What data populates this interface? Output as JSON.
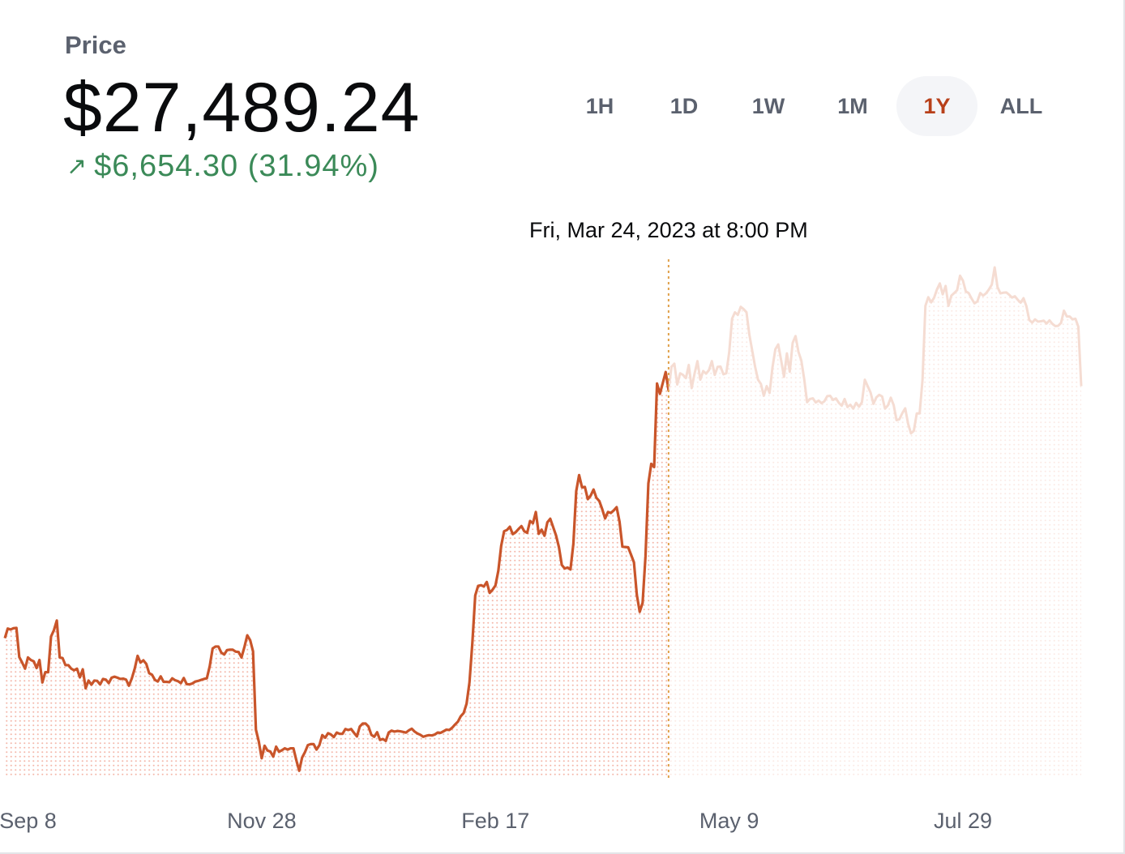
{
  "header": {
    "price_label": "Price",
    "price_value": "$27,489.24",
    "change_icon": "arrow-up-right-icon",
    "change_text": "$6,654.30 (31.94%)"
  },
  "ranges": [
    {
      "label": "1H",
      "active": false
    },
    {
      "label": "1D",
      "active": false
    },
    {
      "label": "1W",
      "active": false
    },
    {
      "label": "1M",
      "active": false
    },
    {
      "label": "1Y",
      "active": true
    },
    {
      "label": "ALL",
      "active": false
    }
  ],
  "colors": {
    "line": "#c9552a",
    "line_faded": "#f5dcd2",
    "dots": "#f4b8ab",
    "dots_faded": "#fbeae5",
    "crosshair": "#e0a14a",
    "positive": "#3b8a58",
    "active_range": "#b8401a"
  },
  "chart_data": {
    "type": "line",
    "tooltip": "Fri, Mar 24, 2023 at 8:00 PM",
    "hover_index": 230,
    "x_tick_labels": [
      "Sep 8",
      "Nov 28",
      "Feb 17",
      "May 9",
      "Jul 29"
    ],
    "x_tick_indices": [
      8,
      89,
      170,
      251,
      332
    ],
    "ylim": [
      15200,
      31200
    ],
    "series": [
      {
        "values": [
          19550,
          19850,
          19820,
          19860,
          19870,
          18960,
          18790,
          18600,
          18950,
          18870,
          18830,
          18620,
          18870,
          18170,
          18490,
          18490,
          19600,
          19800,
          20100,
          18950,
          18930,
          18710,
          18710,
          18600,
          18550,
          18600,
          18330,
          18580,
          17990,
          18230,
          18100,
          18230,
          18220,
          18110,
          18280,
          18260,
          18150,
          18320,
          18350,
          18320,
          18280,
          18290,
          18260,
          18070,
          18300,
          18600,
          19000,
          18790,
          18860,
          18750,
          18460,
          18410,
          18250,
          18200,
          18360,
          18190,
          18190,
          18180,
          18300,
          18240,
          18210,
          18150,
          18310,
          18120,
          18110,
          18140,
          18200,
          18220,
          18250,
          18280,
          18300,
          18680,
          19230,
          19290,
          19290,
          19100,
          19040,
          19180,
          19190,
          19190,
          19130,
          19120,
          18950,
          19270,
          19640,
          19490,
          19140,
          16700,
          16330,
          15810,
          16200,
          16050,
          16020,
          15860,
          16170,
          16010,
          16060,
          16120,
          16080,
          16120,
          16120,
          15750,
          15420,
          15830,
          16000,
          16220,
          16250,
          16250,
          16080,
          16220,
          16530,
          16450,
          16590,
          16550,
          16470,
          16610,
          16570,
          16570,
          16720,
          16690,
          16720,
          16600,
          16490,
          16800,
          16890,
          16890,
          16800,
          16540,
          16480,
          16620,
          16380,
          16410,
          16350,
          16610,
          16670,
          16640,
          16660,
          16650,
          16630,
          16610,
          16680,
          16730,
          16640,
          16580,
          16540,
          16480,
          16510,
          16530,
          16520,
          16550,
          16610,
          16600,
          16650,
          16700,
          16690,
          16760,
          16860,
          16950,
          17120,
          17220,
          17510,
          18170,
          19400,
          20880,
          21180,
          21200,
          21160,
          21300,
          20960,
          21060,
          21190,
          21650,
          22430,
          22880,
          22920,
          23020,
          22790,
          22850,
          22950,
          23040,
          22880,
          22830,
          23200,
          23130,
          23480,
          22800,
          22930,
          22740,
          23160,
          23270,
          23010,
          22750,
          22390,
          21830,
          21720,
          21750,
          21690,
          22480,
          24130,
          24630,
          24250,
          24260,
          23880,
          23990,
          24180,
          23920,
          23820,
          23570,
          23280,
          23480,
          23450,
          23530,
          23630,
          23180,
          22400,
          22390,
          22380,
          22150,
          21910,
          20900,
          20370,
          20650,
          22100,
          24370,
          24980,
          24880,
          27480,
          27160,
          27500,
          27840,
          27270,
          28000,
          28100,
          27450,
          27800,
          27750,
          27650,
          28060,
          27340,
          27790,
          28180,
          27600,
          27870,
          27790,
          27900,
          28180,
          27750,
          28000,
          28010,
          27770,
          27800,
          28450,
          29500,
          29700,
          29620,
          29870,
          29800,
          29700,
          29000,
          28500,
          28000,
          27600,
          27470,
          27100,
          27400,
          27190,
          27980,
          28550,
          28700,
          28210,
          27690,
          28420,
          27850,
          28750,
          28960,
          28470,
          28200,
          27620,
          26900,
          27000,
          27020,
          26890,
          26950,
          26870,
          26930,
          27090,
          27100,
          26970,
          27020,
          26880,
          26790,
          27000,
          26750,
          26820,
          26700,
          26880,
          26760,
          26900,
          27600,
          27400,
          27200,
          26850,
          27050,
          27130,
          27080,
          26700,
          26800,
          27040,
          26810,
          26340,
          26370,
          26560,
          26710,
          26230,
          25930,
          26010,
          26550,
          26550,
          27600,
          29900,
          30170,
          30010,
          30150,
          30410,
          30600,
          30260,
          30520,
          29900,
          30220,
          30300,
          30390,
          30840,
          30690,
          30350,
          30300,
          30130,
          29980,
          30040,
          30300,
          30220,
          30290,
          30410,
          30560,
          31100,
          30480,
          30290,
          30310,
          30320,
          30250,
          30160,
          30200,
          30090,
          30000,
          30140,
          29890,
          29460,
          29380,
          29480,
          29410,
          29420,
          29440,
          29350,
          29450,
          29340,
          29270,
          29280,
          29370,
          29750,
          29570,
          29570,
          29480,
          29500,
          29250,
          27400
        ]
      }
    ]
  }
}
